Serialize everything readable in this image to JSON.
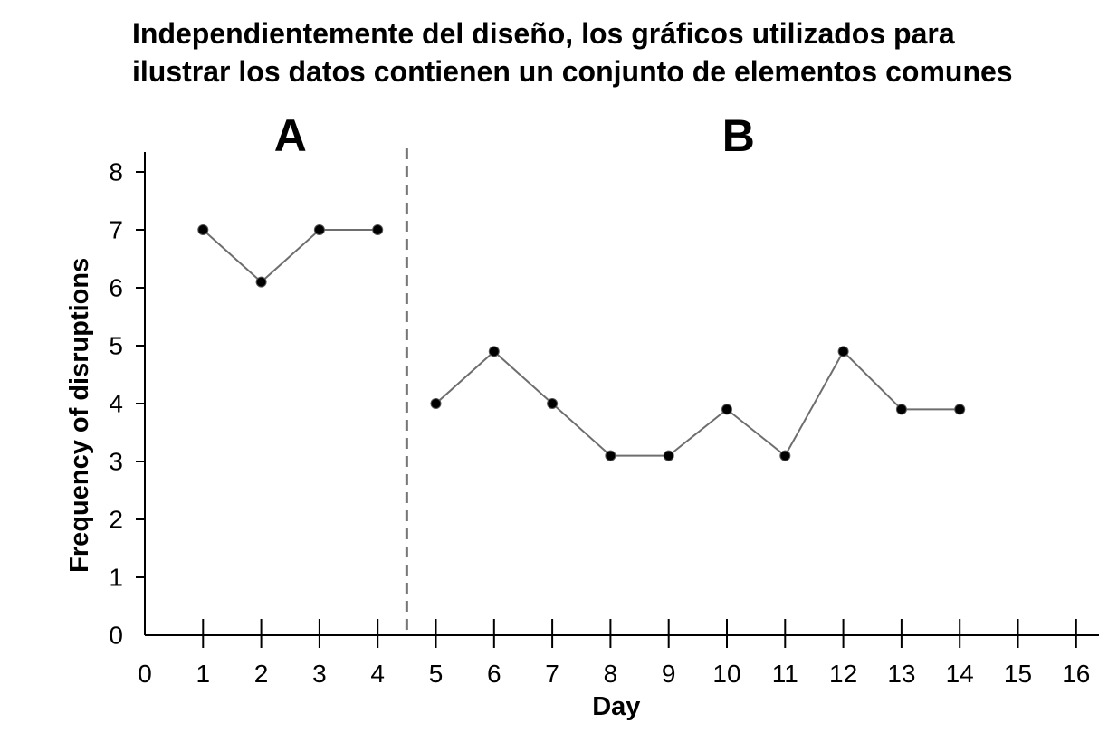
{
  "title_lines": [
    "Independientemente del diseño, los gráficos utilizados para",
    "ilustrar los datos contienen un conjunto de elementos comunes"
  ],
  "chart_data": {
    "type": "line",
    "xlabel": "Day",
    "ylabel": "Frequency of disruptions",
    "xlim": [
      0,
      16
    ],
    "ylim": [
      0,
      8
    ],
    "x_ticks": [
      0,
      1,
      2,
      3,
      4,
      5,
      6,
      7,
      8,
      9,
      10,
      11,
      12,
      13,
      14,
      15,
      16
    ],
    "y_ticks": [
      0,
      1,
      2,
      3,
      4,
      5,
      6,
      7,
      8
    ],
    "phase_change_at": 4.5,
    "phases": [
      {
        "label": "A",
        "x": [
          1,
          2,
          3,
          4
        ],
        "values": [
          7,
          6.1,
          7,
          7
        ]
      },
      {
        "label": "B",
        "x": [
          5,
          6,
          7,
          8,
          9,
          10,
          11,
          12,
          13,
          14
        ],
        "values": [
          4,
          4.9,
          4,
          3.1,
          3.1,
          3.9,
          3.1,
          4.9,
          3.9,
          3.9
        ]
      }
    ],
    "grid": false,
    "line_color": "#6e6e6e",
    "marker_color": "#000000",
    "divider_color": "#777777"
  }
}
